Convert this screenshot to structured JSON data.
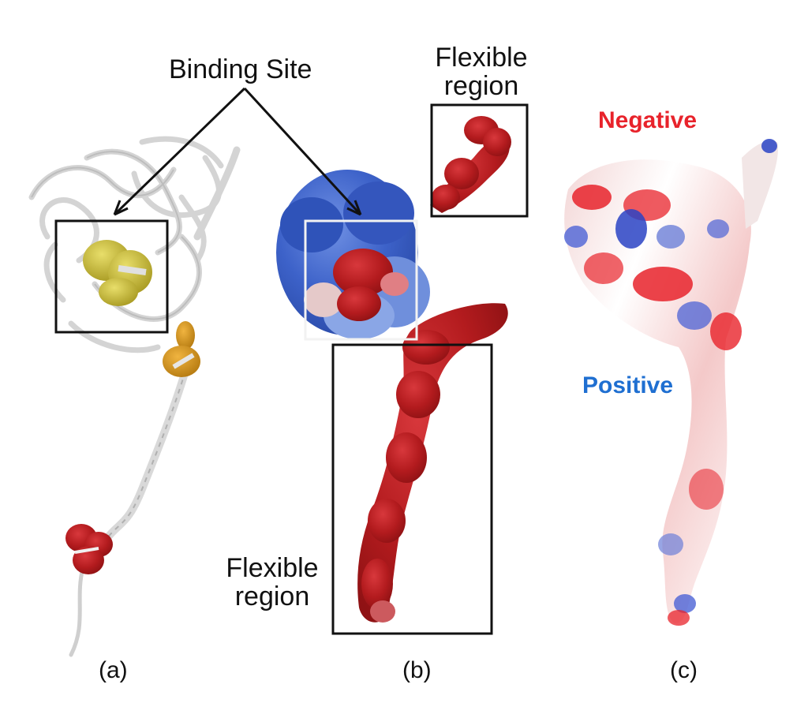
{
  "annotations": {
    "binding_site": "Binding Site",
    "flexible_region_top": [
      "Flexible",
      "region"
    ],
    "flexible_region_bottom": [
      "Flexible",
      "region"
    ]
  },
  "panels": {
    "a": "(a)",
    "b": "(b)",
    "c": "(c)"
  },
  "legend": {
    "negative": "Negative",
    "positive": "Positive"
  },
  "colors": {
    "negative": "#e8232b",
    "positive": "#1f6fd1",
    "binding_ligand": "#c9b934",
    "mid_ligand": "#d89a1a",
    "flexible_red": "#b31b1e",
    "surface_blue": "#3d62c9",
    "ribbon": "#d9d9d9",
    "box_stroke": "#111111"
  }
}
